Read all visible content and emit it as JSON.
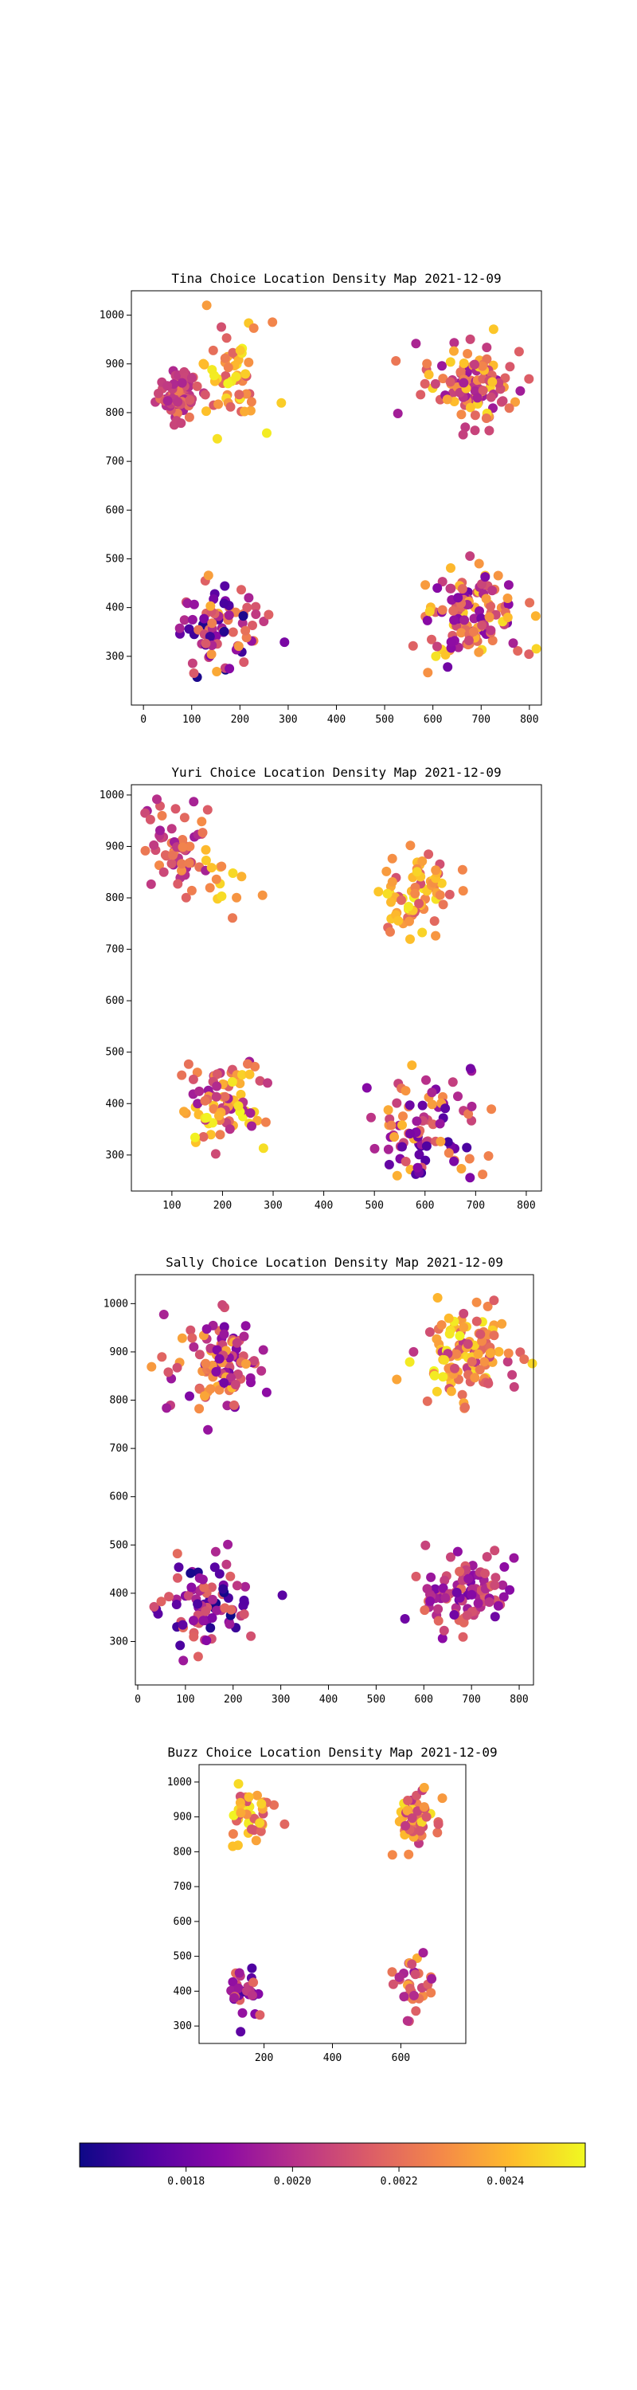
{
  "figure": {
    "colorbar": {
      "colormap": "plasma",
      "vmin": 0.0016,
      "vmax": 0.00255,
      "ticks": [
        0.0018,
        0.002,
        0.0022,
        0.0024
      ],
      "tick_labels": [
        "0.0018",
        "0.0020",
        "0.0022",
        "0.0024"
      ]
    }
  },
  "chart_data": [
    {
      "type": "scatter",
      "title": "Tina Choice Location Density Map 2021-12-09",
      "xlim": [
        -25,
        825
      ],
      "ylim": [
        200,
        1050
      ],
      "xticks": [
        0,
        100,
        200,
        300,
        400,
        500,
        600,
        700,
        800
      ],
      "yticks": [
        300,
        400,
        500,
        600,
        700,
        800,
        900,
        1000
      ],
      "color_by": "density",
      "clusters": [
        {
          "cx": 70,
          "cy": 835,
          "sx": 22,
          "sy": 25,
          "n": 75,
          "c": [
            0.00195,
            0.00225
          ]
        },
        {
          "cx": 185,
          "cy": 880,
          "sx": 35,
          "sy": 55,
          "n": 55,
          "c": [
            0.0021,
            0.00255
          ]
        },
        {
          "cx": 680,
          "cy": 860,
          "sx": 45,
          "sy": 40,
          "n": 110,
          "c": [
            0.0019,
            0.0025
          ]
        },
        {
          "cx": 145,
          "cy": 350,
          "sx": 45,
          "sy": 55,
          "n": 85,
          "c": [
            0.0016,
            0.0024
          ]
        },
        {
          "cx": 680,
          "cy": 380,
          "sx": 50,
          "sy": 45,
          "n": 120,
          "c": [
            0.0018,
            0.0025
          ]
        }
      ]
    },
    {
      "type": "scatter",
      "title": "Yuri Choice Location Density Map 2021-12-09",
      "xlim": [
        20,
        830
      ],
      "ylim": [
        230,
        1020
      ],
      "xticks": [
        100,
        200,
        300,
        400,
        500,
        600,
        700,
        800
      ],
      "yticks": [
        300,
        400,
        500,
        600,
        700,
        800,
        900,
        1000
      ],
      "color_by": "density",
      "clusters": [
        {
          "cx": 110,
          "cy": 890,
          "sx": 30,
          "sy": 40,
          "n": 60,
          "c": [
            0.0019,
            0.0023
          ]
        },
        {
          "cx": 215,
          "cy": 830,
          "sx": 30,
          "sy": 40,
          "n": 15,
          "c": [
            0.0022,
            0.0025
          ]
        },
        {
          "cx": 580,
          "cy": 810,
          "sx": 40,
          "sy": 40,
          "n": 75,
          "c": [
            0.0021,
            0.00255
          ]
        },
        {
          "cx": 200,
          "cy": 400,
          "sx": 40,
          "sy": 40,
          "n": 90,
          "c": [
            0.0019,
            0.00255
          ]
        },
        {
          "cx": 600,
          "cy": 350,
          "sx": 55,
          "sy": 55,
          "n": 95,
          "c": [
            0.0017,
            0.0024
          ]
        }
      ]
    },
    {
      "type": "scatter",
      "title": "Sally Choice Location Density Map 2021-12-09",
      "xlim": [
        -5,
        830
      ],
      "ylim": [
        210,
        1060
      ],
      "xticks": [
        0,
        100,
        200,
        300,
        400,
        500,
        600,
        700,
        800
      ],
      "yticks": [
        300,
        400,
        500,
        600,
        700,
        800,
        900,
        1000
      ],
      "color_by": "density",
      "clusters": [
        {
          "cx": 170,
          "cy": 880,
          "sx": 50,
          "sy": 45,
          "n": 110,
          "c": [
            0.0018,
            0.0024
          ]
        },
        {
          "cx": 690,
          "cy": 890,
          "sx": 50,
          "sy": 45,
          "n": 120,
          "c": [
            0.002,
            0.00255
          ]
        },
        {
          "cx": 150,
          "cy": 370,
          "sx": 45,
          "sy": 45,
          "n": 90,
          "c": [
            0.0016,
            0.0022
          ]
        },
        {
          "cx": 680,
          "cy": 400,
          "sx": 45,
          "sy": 45,
          "n": 100,
          "c": [
            0.0018,
            0.0022
          ]
        }
      ]
    },
    {
      "type": "scatter",
      "title": "Buzz Choice Location Density Map 2021-12-09",
      "xlim": [
        10,
        790
      ],
      "ylim": [
        250,
        1050
      ],
      "xticks": [
        200,
        400,
        600
      ],
      "yticks": [
        300,
        400,
        500,
        600,
        700,
        800,
        900,
        1000
      ],
      "color_by": "density",
      "clusters": [
        {
          "cx": 160,
          "cy": 890,
          "sx": 35,
          "sy": 40,
          "n": 45,
          "c": [
            0.0021,
            0.00255
          ]
        },
        {
          "cx": 640,
          "cy": 900,
          "sx": 40,
          "sy": 45,
          "n": 50,
          "c": [
            0.002,
            0.0025
          ]
        },
        {
          "cx": 140,
          "cy": 400,
          "sx": 25,
          "sy": 35,
          "n": 30,
          "c": [
            0.0017,
            0.0022
          ]
        },
        {
          "cx": 635,
          "cy": 410,
          "sx": 30,
          "sy": 40,
          "n": 35,
          "c": [
            0.0019,
            0.0024
          ]
        }
      ]
    }
  ]
}
